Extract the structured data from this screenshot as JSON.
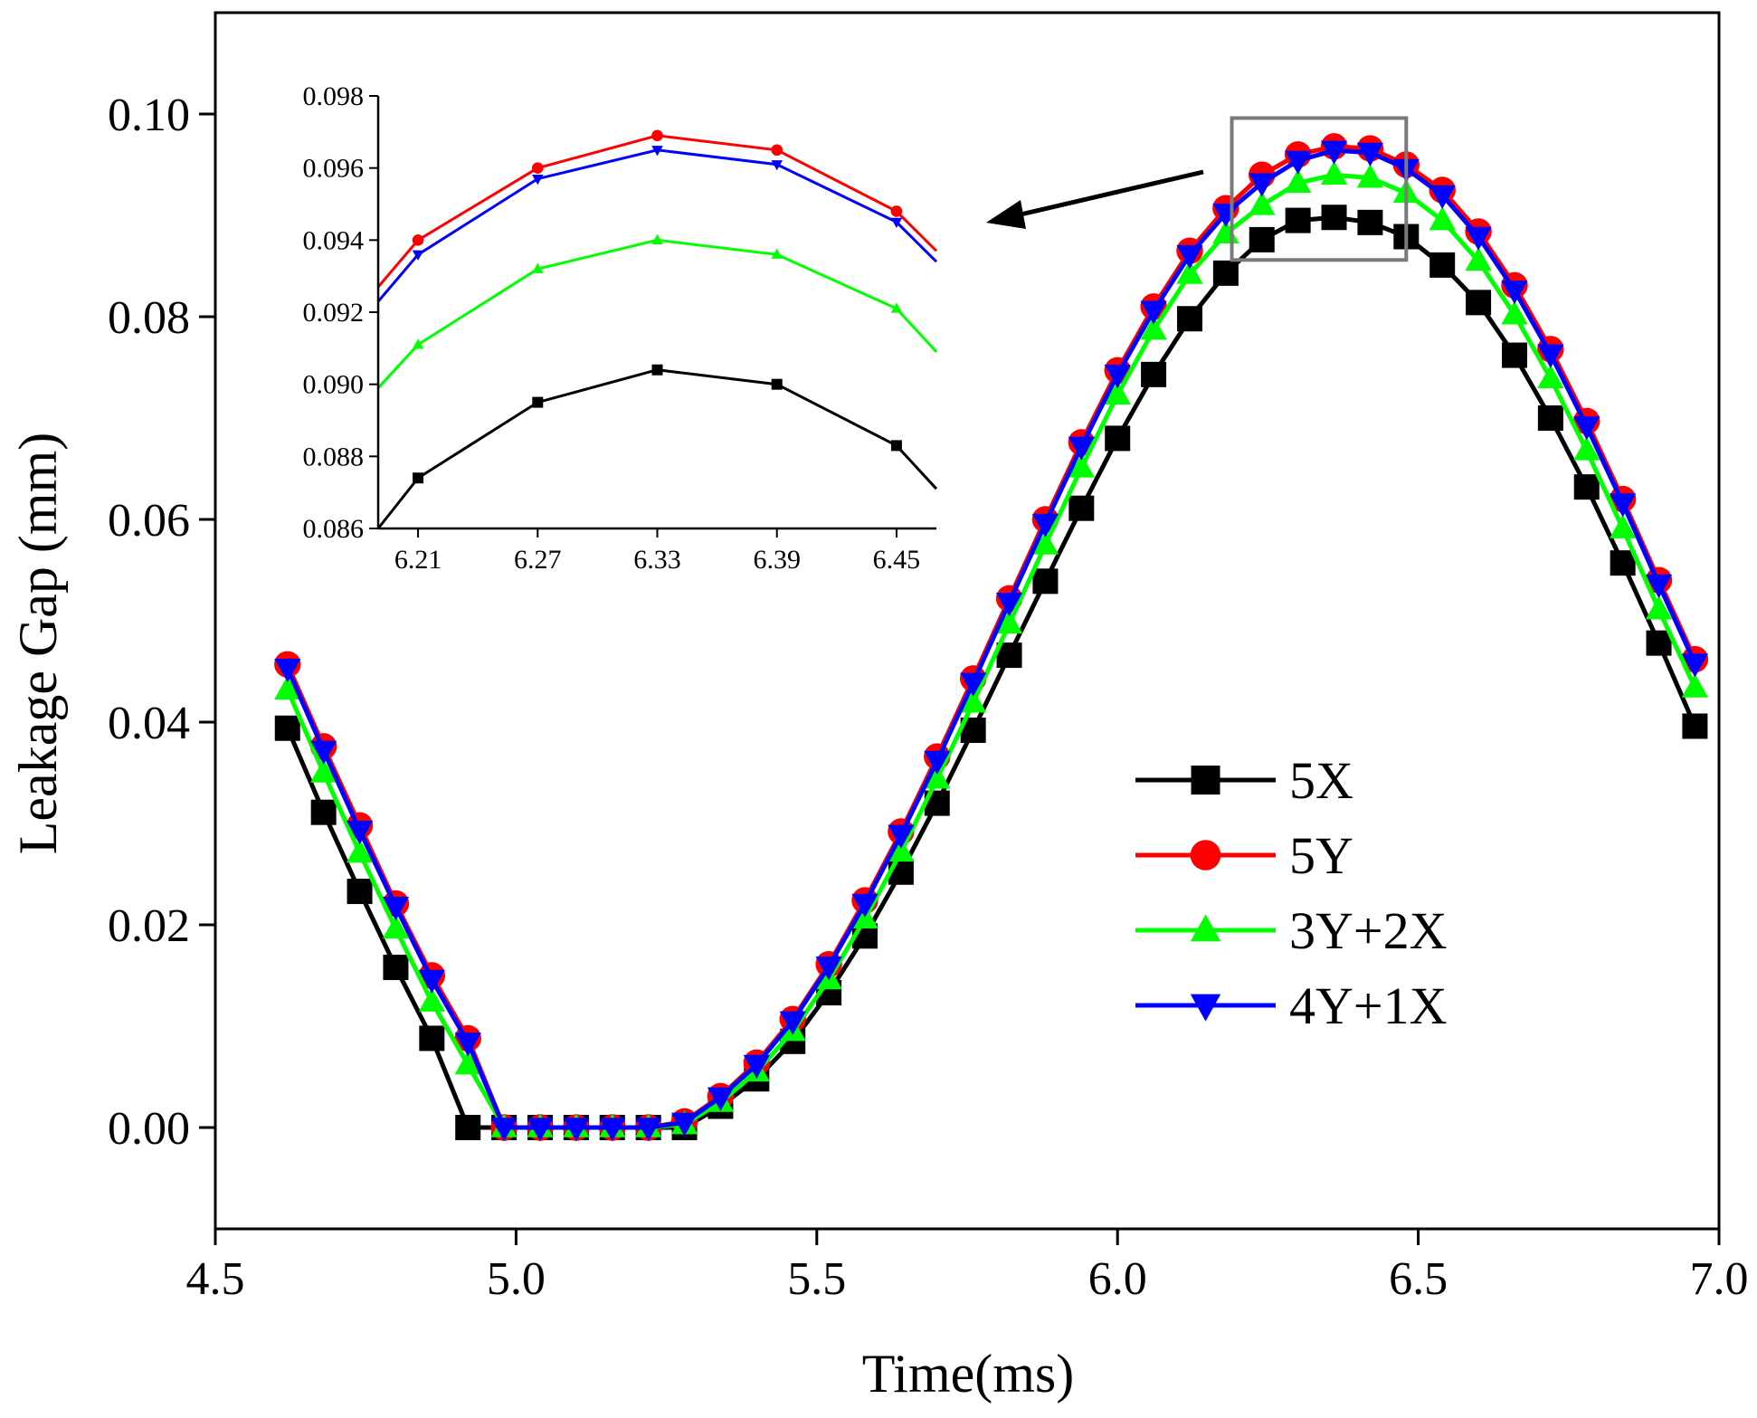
{
  "chart_data": {
    "type": "line",
    "xlabel": "Time(ms)",
    "ylabel": "Leakage Gap (mm)",
    "xlim": [
      4.5,
      7.0
    ],
    "ylim": [
      -0.01,
      0.11
    ],
    "xticks": [
      {
        "value": 4.5,
        "label": "4.5"
      },
      {
        "value": 5.0,
        "label": "5.0"
      },
      {
        "value": 5.5,
        "label": "5.5"
      },
      {
        "value": 6.0,
        "label": "6.0"
      },
      {
        "value": 6.5,
        "label": "6.5"
      },
      {
        "value": 7.0,
        "label": "7.0"
      }
    ],
    "yticks": [
      {
        "value": 0.0,
        "label": "0.00"
      },
      {
        "value": 0.02,
        "label": "0.02"
      },
      {
        "value": 0.04,
        "label": "0.04"
      },
      {
        "value": 0.06,
        "label": "0.06"
      },
      {
        "value": 0.08,
        "label": "0.08"
      },
      {
        "value": 0.1,
        "label": "0.10"
      }
    ],
    "grid": false,
    "legend_position": "right-middle",
    "x": [
      4.62,
      4.68,
      4.74,
      4.8,
      4.86,
      4.92,
      4.98,
      5.04,
      5.1,
      5.16,
      5.22,
      5.28,
      5.34,
      5.4,
      5.46,
      5.52,
      5.58,
      5.64,
      5.7,
      5.76,
      5.82,
      5.88,
      5.94,
      6.0,
      6.06,
      6.12,
      6.18,
      6.24,
      6.3,
      6.36,
      6.42,
      6.48,
      6.54,
      6.6,
      6.66,
      6.72,
      6.78,
      6.84,
      6.9,
      6.96
    ],
    "series": [
      {
        "name": "5X",
        "color": "#000000",
        "marker": "square",
        "values": [
          0.0394,
          0.0311,
          0.0233,
          0.0158,
          0.0088,
          0.0,
          0.0,
          0.0,
          0.0,
          0.0,
          0.0,
          0.0,
          0.0021,
          0.0048,
          0.0085,
          0.0133,
          0.0189,
          0.0252,
          0.032,
          0.0392,
          0.0466,
          0.0539,
          0.0611,
          0.068,
          0.0743,
          0.0798,
          0.0843,
          0.0876,
          0.0895,
          0.0898,
          0.0893,
          0.0879,
          0.0851,
          0.0814,
          0.0762,
          0.07,
          0.0632,
          0.0557,
          0.0478,
          0.0396
        ]
      },
      {
        "name": "5Y",
        "color": "#ff0000",
        "marker": "circle",
        "values": [
          0.0457,
          0.0376,
          0.0298,
          0.0221,
          0.015,
          0.0088,
          0.0,
          0.0,
          0.0,
          0.0,
          0.0,
          0.0006,
          0.0031,
          0.0064,
          0.0107,
          0.0161,
          0.0224,
          0.0292,
          0.0366,
          0.0443,
          0.0522,
          0.06,
          0.0676,
          0.0747,
          0.081,
          0.0865,
          0.0907,
          0.094,
          0.096,
          0.0968,
          0.0966,
          0.095,
          0.0925,
          0.0884,
          0.0831,
          0.0768,
          0.0697,
          0.062,
          0.054,
          0.0462
        ]
      },
      {
        "name": "3Y+2X",
        "color": "#00ff00",
        "marker": "triangle-up",
        "values": [
          0.0432,
          0.035,
          0.0271,
          0.0196,
          0.0124,
          0.0062,
          0.0,
          0.0,
          0.0,
          0.0,
          0.0,
          0.0003,
          0.0025,
          0.0055,
          0.0095,
          0.0146,
          0.0206,
          0.0272,
          0.0344,
          0.0419,
          0.0497,
          0.0575,
          0.0651,
          0.0723,
          0.0787,
          0.0842,
          0.0882,
          0.091,
          0.0932,
          0.094,
          0.0937,
          0.0922,
          0.0895,
          0.0855,
          0.0802,
          0.0739,
          0.0668,
          0.0591,
          0.0511,
          0.0434
        ]
      },
      {
        "name": "4Y+1X",
        "color": "#0000ff",
        "marker": "triangle-down",
        "values": [
          0.0453,
          0.0372,
          0.0293,
          0.0218,
          0.0146,
          0.0084,
          0.0,
          0.0,
          0.0,
          0.0,
          0.0,
          0.0005,
          0.003,
          0.0062,
          0.0105,
          0.0159,
          0.0221,
          0.0289,
          0.0362,
          0.0439,
          0.0518,
          0.0596,
          0.0672,
          0.0743,
          0.0806,
          0.0861,
          0.0902,
          0.0932,
          0.0954,
          0.0964,
          0.0962,
          0.0946,
          0.092,
          0.0879,
          0.0826,
          0.0763,
          0.0692,
          0.0616,
          0.0536,
          0.0458
        ]
      }
    ],
    "zoom_box": {
      "x_range": [
        6.19,
        6.48
      ],
      "y_range": [
        0.0856,
        0.0996
      ]
    },
    "inset": {
      "type": "line",
      "xlim": [
        6.19,
        6.47
      ],
      "ylim": [
        0.086,
        0.098
      ],
      "xticks": [
        {
          "value": 6.21,
          "label": "6.21"
        },
        {
          "value": 6.27,
          "label": "6.27"
        },
        {
          "value": 6.33,
          "label": "6.33"
        },
        {
          "value": 6.39,
          "label": "6.39"
        },
        {
          "value": 6.45,
          "label": "6.45"
        }
      ],
      "yticks": [
        {
          "value": 0.086,
          "label": "0.086"
        },
        {
          "value": 0.088,
          "label": "0.088"
        },
        {
          "value": 0.09,
          "label": "0.090"
        },
        {
          "value": 0.092,
          "label": "0.092"
        },
        {
          "value": 0.094,
          "label": "0.094"
        },
        {
          "value": 0.096,
          "label": "0.096"
        },
        {
          "value": 0.098,
          "label": "0.098"
        }
      ],
      "x": [
        6.21,
        6.27,
        6.33,
        6.39,
        6.45
      ],
      "series": [
        {
          "name": "5X",
          "color": "#000000",
          "x_start": 6.19,
          "y_start": 0.086,
          "x_end": 6.47,
          "y_end": 0.0871,
          "values": [
            0.0874,
            0.0895,
            0.0904,
            0.09,
            0.0883
          ]
        },
        {
          "name": "5Y",
          "color": "#ff0000",
          "x_start": 6.19,
          "y_start": 0.0927,
          "x_end": 6.47,
          "y_end": 0.0937,
          "values": [
            0.094,
            0.096,
            0.0969,
            0.0965,
            0.0948
          ]
        },
        {
          "name": "3Y+2X",
          "color": "#00ff00",
          "x_start": 6.19,
          "y_start": 0.0899,
          "x_end": 6.47,
          "y_end": 0.0909,
          "values": [
            0.0911,
            0.0932,
            0.094,
            0.0936,
            0.0921
          ]
        },
        {
          "name": "4Y+1X",
          "color": "#0000ff",
          "x_start": 6.19,
          "y_start": 0.0923,
          "x_end": 6.47,
          "y_end": 0.0934,
          "values": [
            0.0936,
            0.0957,
            0.0965,
            0.0961,
            0.0945
          ]
        }
      ]
    }
  }
}
